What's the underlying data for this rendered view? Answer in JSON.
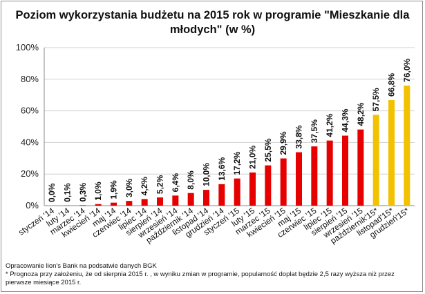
{
  "chart_data": {
    "type": "bar",
    "title": "Poziom wykorzystania budżetu na 2015 rok w programie \"Mieszkanie dla młodych\" (w %)",
    "xlabel": "",
    "ylabel": "",
    "ylim": [
      0,
      100
    ],
    "yticks": [
      "0%",
      "20%",
      "40%",
      "60%",
      "80%",
      "100%"
    ],
    "grid": true,
    "legend": "none",
    "categories": [
      "styczeń '14",
      "luty '14",
      "marzec '14",
      "kwiecień '14",
      "maj '14",
      "czerwiec '14",
      "lipiec '14",
      "sierpień '14",
      "wrzesień '14",
      "październik '14",
      "listopad '14",
      "grudzień '14",
      "styczeń '15",
      "luty '15",
      "marzec '15",
      "kwiecień '15",
      "maj '15",
      "czerwiec '15",
      "lipiec '15",
      "sierpień '15",
      "wrzesień '15",
      "październik'15*",
      "listopad'15*",
      "grudzień'15*"
    ],
    "values": [
      0.0,
      0.1,
      0.3,
      1.0,
      1.9,
      3.0,
      4.2,
      5.2,
      6.4,
      8.0,
      10.0,
      13.6,
      17.2,
      21.0,
      25.5,
      29.9,
      33.8,
      37.5,
      41.2,
      44.3,
      48.2,
      57.5,
      66.8,
      76.0
    ],
    "data_labels": [
      "0,0%",
      "0,1%",
      "0,3%",
      "1,0%",
      "1,9%",
      "3,0%",
      "4,2%",
      "5,2%",
      "6,4%",
      "8,0%",
      "10,0%",
      "13,6%",
      "17,2%",
      "21,0%",
      "25,5%",
      "29,9%",
      "33,8%",
      "37,5%",
      "41,2%",
      "44,3%",
      "48,2%",
      "57,5%",
      "66,8%",
      "76,0%"
    ],
    "forecast_flags": [
      false,
      false,
      false,
      false,
      false,
      false,
      false,
      false,
      false,
      false,
      false,
      false,
      false,
      false,
      false,
      false,
      false,
      false,
      false,
      false,
      false,
      true,
      true,
      true
    ],
    "colors": {
      "actual": "#e60000",
      "forecast": "#f2c200",
      "grid": "#d0d0d0"
    }
  },
  "notes": {
    "source": "Opracowanie lion's Bank na podsatwie danych BGK",
    "forecast_note": "* Prognoza przy założeniu, że od sierpnia 2015 r. , w wyniku zmian w programie, popularność doplat będzie 2,5 razy wyższa niż przez pierwsze miesiące  2015 r."
  }
}
